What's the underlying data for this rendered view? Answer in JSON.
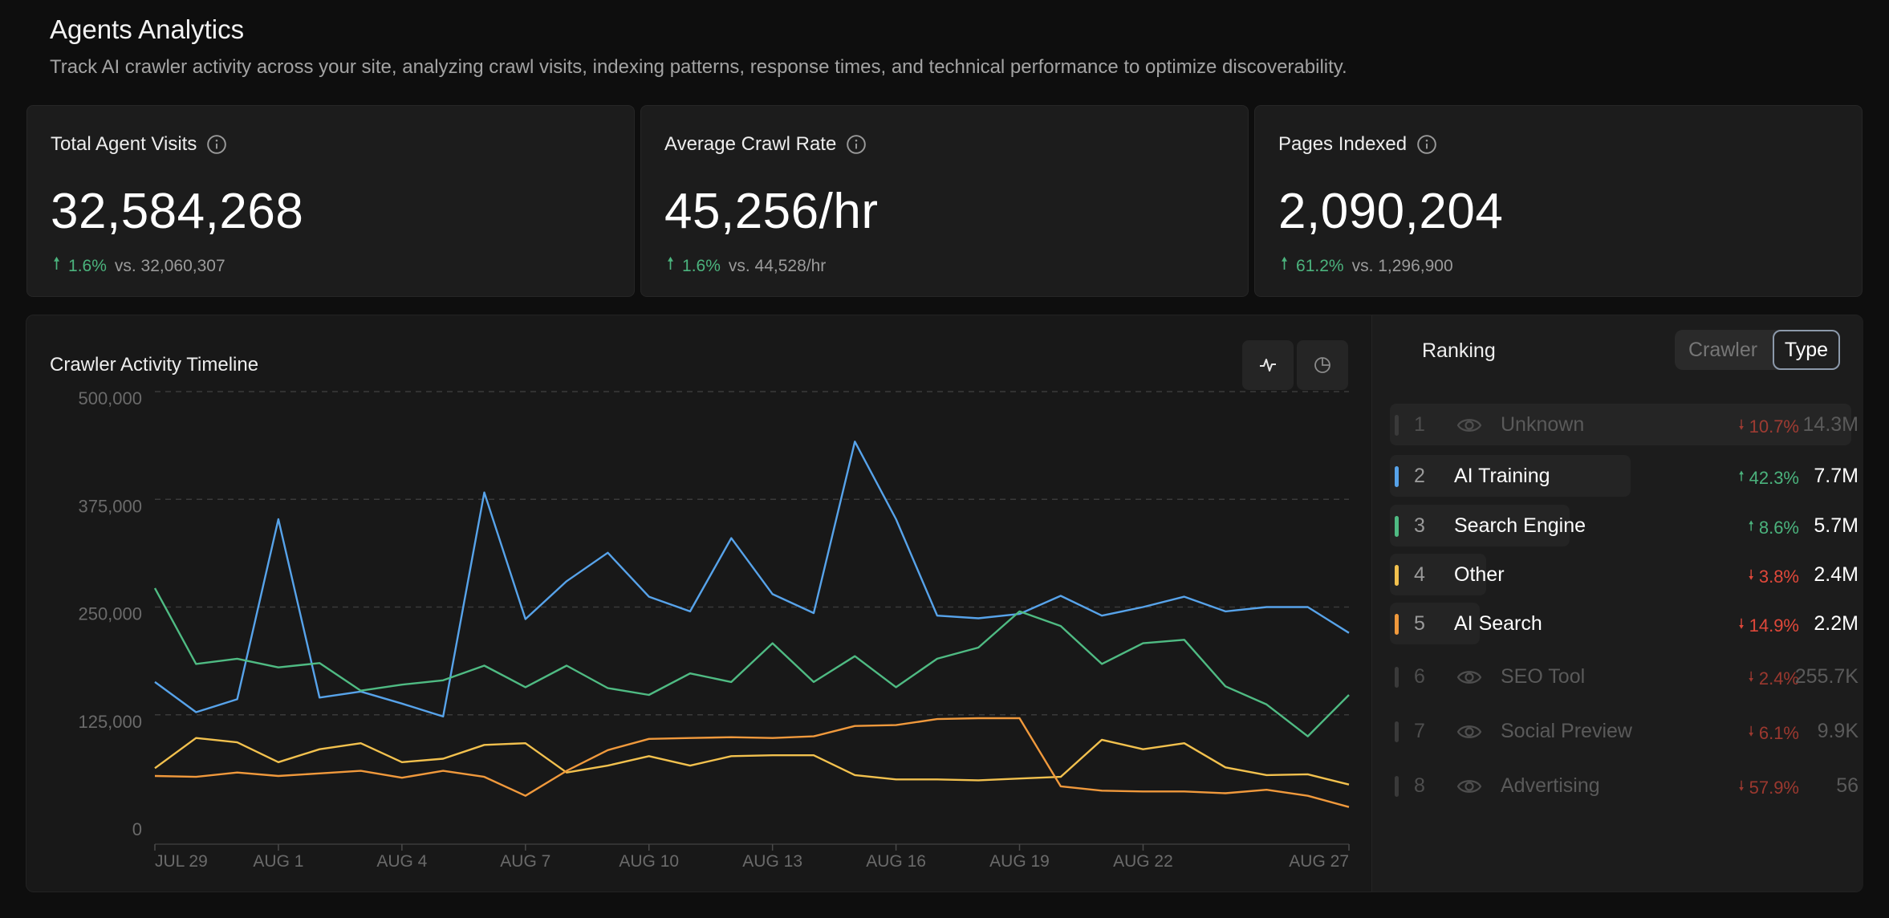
{
  "header": {
    "title": "Agents Analytics",
    "description": "Track AI crawler activity across your site, analyzing crawl visits, indexing patterns, response times, and technical performance to optimize discoverability."
  },
  "kpis": [
    {
      "label": "Total Agent Visits",
      "value": "32,584,268",
      "delta": "1.6%",
      "direction": "up",
      "compare": "vs. 32,060,307"
    },
    {
      "label": "Average Crawl Rate",
      "value": "45,256/hr",
      "delta": "1.6%",
      "direction": "up",
      "compare": "vs. 44,528/hr"
    },
    {
      "label": "Pages Indexed",
      "value": "2,090,204",
      "delta": "61.2%",
      "direction": "up",
      "compare": "vs. 1,296,900"
    }
  ],
  "timeline": {
    "title": "Crawler Activity Timeline",
    "view_buttons": [
      {
        "icon": "line-chart-icon"
      },
      {
        "icon": "pie-chart-icon"
      }
    ]
  },
  "chart_data": {
    "type": "line",
    "ylim": [
      0,
      500000
    ],
    "y_ticks": [
      "500,000",
      "375,000",
      "250,000",
      "125,000",
      "0"
    ],
    "x_tick_labels": [
      "JUL 29",
      "AUG 1",
      "AUG 4",
      "AUG 7",
      "AUG 10",
      "AUG 13",
      "AUG 16",
      "AUG 19",
      "AUG 22",
      "AUG 27"
    ],
    "x": [
      "Jul 29",
      "Jul 30",
      "Jul 31",
      "Aug 1",
      "Aug 2",
      "Aug 3",
      "Aug 4",
      "Aug 5",
      "Aug 6",
      "Aug 7",
      "Aug 8",
      "Aug 9",
      "Aug 10",
      "Aug 11",
      "Aug 12",
      "Aug 13",
      "Aug 14",
      "Aug 15",
      "Aug 16",
      "Aug 17",
      "Aug 18",
      "Aug 19",
      "Aug 20",
      "Aug 21",
      "Aug 22",
      "Aug 23",
      "Aug 24",
      "Aug 25",
      "Aug 26",
      "Aug 27"
    ],
    "series": [
      {
        "name": "AI Training",
        "color": "#57a3ea",
        "values": [
          163000,
          128000,
          143000,
          352000,
          145000,
          152000,
          138000,
          123000,
          383000,
          236000,
          280000,
          313000,
          262000,
          245000,
          330000,
          265000,
          243000,
          442000,
          352000,
          240000,
          237000,
          242000,
          263000,
          240000,
          250000,
          262000,
          245000,
          250000,
          250000,
          220000
        ]
      },
      {
        "name": "Search Engine",
        "color": "#4fbb83",
        "values": [
          272000,
          184000,
          190000,
          180000,
          185000,
          153000,
          160000,
          165000,
          182000,
          157000,
          182000,
          156000,
          148000,
          173000,
          163000,
          208000,
          163000,
          193000,
          157000,
          190000,
          203000,
          245000,
          228000,
          184000,
          208000,
          212000,
          158000,
          137000,
          100000,
          148000
        ]
      },
      {
        "name": "Other",
        "color": "#f2c14e",
        "values": [
          63000,
          98000,
          93000,
          70000,
          85000,
          92000,
          70000,
          74000,
          90000,
          92000,
          58000,
          66000,
          77000,
          66000,
          77000,
          78000,
          78000,
          55000,
          50000,
          50000,
          49000,
          51000,
          53000,
          96000,
          85000,
          92000,
          64000,
          55000,
          56000,
          44000
        ]
      },
      {
        "name": "AI Search",
        "color": "#f0993c",
        "values": [
          54000,
          53000,
          58000,
          54000,
          57000,
          60000,
          52000,
          60000,
          53000,
          31000,
          60000,
          84000,
          97000,
          98000,
          99000,
          98000,
          100000,
          112000,
          113000,
          120000,
          121000,
          121000,
          42000,
          37000,
          36000,
          36000,
          34000,
          38000,
          31000,
          18000
        ]
      }
    ]
  },
  "ranking": {
    "title": "Ranking",
    "tabs": {
      "crawler": "Crawler",
      "type": "Type"
    },
    "rows": [
      {
        "rank": "1",
        "name": "Unknown",
        "delta": "10.7%",
        "direction": "down",
        "value": "14.3M",
        "color": "#3a3a3a",
        "faded": true
      },
      {
        "rank": "2",
        "name": "AI Training",
        "delta": "42.3%",
        "direction": "up",
        "value": "7.7M",
        "color": "#57a3ea",
        "faded": false
      },
      {
        "rank": "3",
        "name": "Search Engine",
        "delta": "8.6%",
        "direction": "up",
        "value": "5.7M",
        "color": "#4fbb83",
        "faded": false
      },
      {
        "rank": "4",
        "name": "Other",
        "delta": "3.8%",
        "direction": "down",
        "value": "2.4M",
        "color": "#f2c14e",
        "faded": false
      },
      {
        "rank": "5",
        "name": "AI Search",
        "delta": "14.9%",
        "direction": "down",
        "value": "2.2M",
        "color": "#f0993c",
        "faded": false
      },
      {
        "rank": "6",
        "name": "SEO Tool",
        "delta": "2.4%",
        "direction": "down",
        "value": "255.7K",
        "color": "#3a3a3a",
        "faded": true
      },
      {
        "rank": "7",
        "name": "Social Preview",
        "delta": "6.1%",
        "direction": "down",
        "value": "9.9K",
        "color": "#3a3a3a",
        "faded": true
      },
      {
        "rank": "8",
        "name": "Advertising",
        "delta": "57.9%",
        "direction": "down",
        "value": "56",
        "color": "#3a3a3a",
        "faded": true
      }
    ]
  }
}
